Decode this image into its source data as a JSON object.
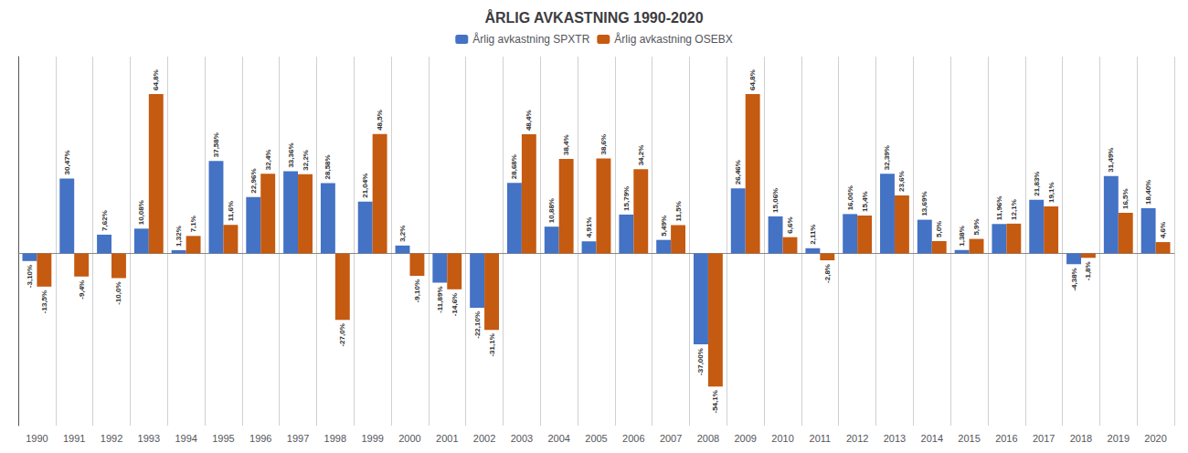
{
  "chart_data": {
    "type": "bar",
    "title": "ÅRLIG AVKASTNING 1990-2020",
    "categories": [
      "1990",
      "1991",
      "1992",
      "1993",
      "1994",
      "1995",
      "1996",
      "1997",
      "1998",
      "1999",
      "2000",
      "2001",
      "2002",
      "2003",
      "2004",
      "2005",
      "2006",
      "2007",
      "2008",
      "2009",
      "2010",
      "2011",
      "2012",
      "2013",
      "2014",
      "2015",
      "2016",
      "2017",
      "2018",
      "2019",
      "2020"
    ],
    "series": [
      {
        "name": "Årlig avkastning SPXTR",
        "color": "#4472C4",
        "values": [
          -3.1,
          30.47,
          7.62,
          10.08,
          1.32,
          37.58,
          22.96,
          33.36,
          28.58,
          21.04,
          3.2,
          -11.89,
          -22.1,
          28.68,
          10.88,
          4.91,
          15.79,
          5.49,
          -37.0,
          26.46,
          15.06,
          2.11,
          16.0,
          32.39,
          13.69,
          1.38,
          11.96,
          21.83,
          -4.38,
          31.49,
          18.4
        ],
        "value_labels": [
          "-3,10%",
          "30,47%",
          "7,62%",
          "10,08%",
          "1,32%",
          "37,58%",
          "22,96%",
          "33,36%",
          "28,58%",
          "21,04%",
          "3,2%",
          "-11,89%",
          "-22,10%",
          "28,68%",
          "10,88%",
          "4,91%",
          "15,79%",
          "5,49%",
          "-37,00%",
          "26,46%",
          "15,06%",
          "2,11%",
          "16,00%",
          "32,39%",
          "13,69%",
          "1,38%",
          "11,96%",
          "21,83%",
          "-4,38%",
          "31,49%",
          "18,40%"
        ]
      },
      {
        "name": "Årlig avkastning OSEBX",
        "color": "#C55A11",
        "values": [
          -13.5,
          -9.4,
          -10.0,
          64.8,
          7.1,
          11.6,
          32.4,
          32.2,
          -27.0,
          48.5,
          -9.1,
          -14.6,
          -31.1,
          48.4,
          38.4,
          38.6,
          34.2,
          11.5,
          -54.1,
          64.8,
          6.6,
          -2.8,
          15.4,
          23.6,
          5.0,
          5.9,
          12.1,
          19.1,
          -1.8,
          16.5,
          4.6
        ],
        "value_labels": [
          "-13,5%",
          "-9,4%",
          "-10,0%",
          "64,8%",
          "7,1%",
          "11,6%",
          "32,4%",
          "32,2%",
          "-27,0%",
          "48,5%",
          "-9,10%",
          "-14,6%",
          "-31,1%",
          "48,4%",
          "38,4%",
          "38,6%",
          "34,2%",
          "11,5%",
          "-54,1%",
          "64,8%",
          "6,6%",
          "-2,8%",
          "15,4%",
          "23,6%",
          "5,0%",
          "5,9%",
          "12,1%",
          "19,1%",
          "-1,8%",
          "16,5%",
          "4,6%"
        ]
      }
    ],
    "ylim": [
      -70,
      80
    ],
    "grid": "x",
    "legend": "top",
    "data_labels": true,
    "tick_labels": "x"
  }
}
